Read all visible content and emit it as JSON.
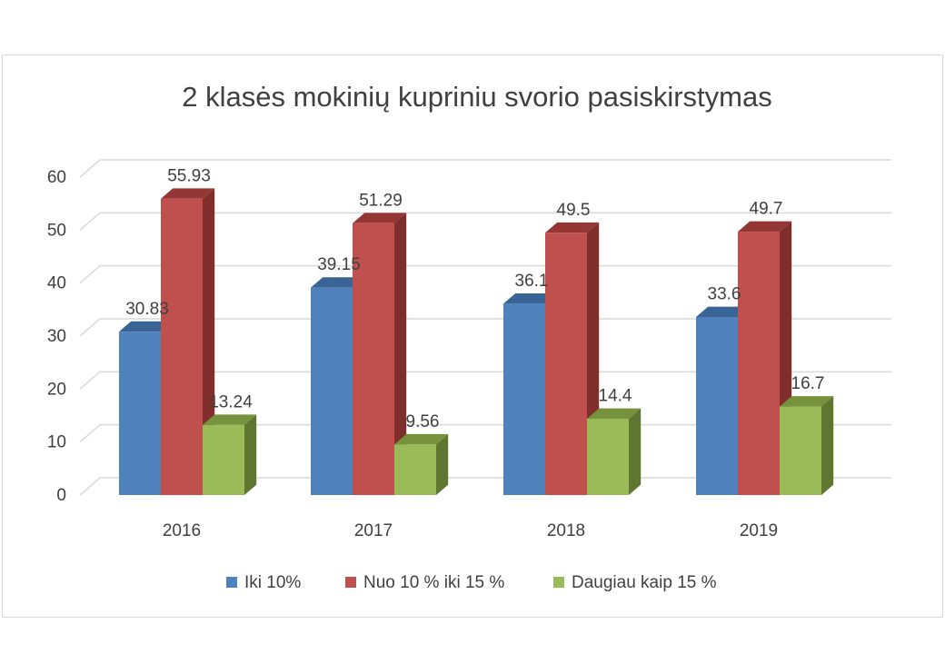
{
  "chart_data": {
    "type": "bar",
    "title": "2 klasės mokinių kupriniu svorio pasiskirstymas",
    "categories": [
      "2016",
      "2017",
      "2018",
      "2019"
    ],
    "series": [
      {
        "name": "Iki 10%",
        "values": [
          30.83,
          39.15,
          36.1,
          33.6
        ],
        "labels": [
          "30.83",
          "39.15",
          "36.1",
          "33.6"
        ],
        "color": "#4F81BD",
        "side": "#385D8A",
        "top": "#3A6496"
      },
      {
        "name": "Nuo 10 % iki 15 %",
        "values": [
          55.93,
          51.29,
          49.5,
          49.7
        ],
        "labels": [
          "55.93",
          "51.29",
          "49.5",
          "49.7"
        ],
        "color": "#C0504D",
        "side": "#7F2E2C",
        "top": "#943634"
      },
      {
        "name": "Daugiau kaip 15 %",
        "values": [
          13.24,
          9.56,
          14.4,
          16.7
        ],
        "labels": [
          "13.24",
          "9.56",
          "14.4",
          "16.7"
        ],
        "color": "#9BBB59",
        "side": "#5E7630",
        "top": "#76923C"
      }
    ],
    "y_ticks": [
      "0",
      "10",
      "20",
      "30",
      "40",
      "50",
      "60"
    ],
    "ylim": [
      0,
      60
    ],
    "grid": true,
    "legend_position": "bottom",
    "style": "3d-clustered-column"
  }
}
